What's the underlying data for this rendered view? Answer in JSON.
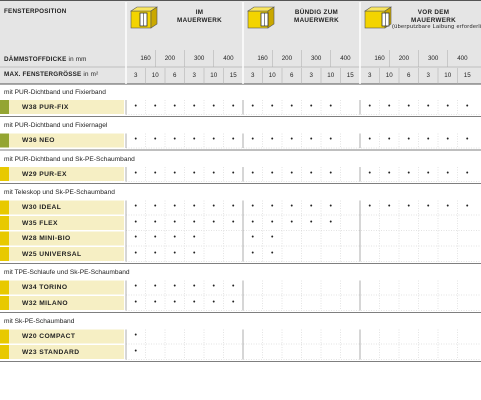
{
  "header": {
    "position_label": "FENSTERPOSITION",
    "insulation_label": "DÄMMSTOFFDICKE",
    "insulation_unit": "in mm",
    "window_size_label": "MAX. FENSTERGRÖSSE",
    "window_size_unit": "in m²"
  },
  "columns": [
    {
      "title_line1": "IM",
      "title_line2": "MAUERWERK",
      "subtitle": "",
      "icon": "window-in-wall-icon"
    },
    {
      "title_line1": "BÜNDIG ZUM",
      "title_line2": "MAUERWERK",
      "subtitle": "",
      "icon": "window-flush-wall-icon"
    },
    {
      "title_line1": "VOR DEM",
      "title_line2": "MAUERWERK",
      "subtitle": "(überputzbare Laibung erforderlich)",
      "icon": "window-front-wall-icon"
    }
  ],
  "thickness_values": [
    "160",
    "200",
    "300",
    "400"
  ],
  "size_values": [
    "3",
    "10",
    "6",
    "3",
    "10",
    "15"
  ],
  "groups": [
    {
      "title": "mit PUR-Dichtband und Fixierband",
      "color": "#94a532",
      "products": [
        {
          "name": "W38 PUR-FIX",
          "dots": [
            [
              1,
              1,
              1,
              1,
              1,
              1
            ],
            [
              1,
              1,
              1,
              1,
              1,
              0
            ],
            [
              1,
              1,
              1,
              1,
              1,
              1
            ]
          ]
        }
      ]
    },
    {
      "title": "mit PUR-Dichtband und Fixiernagel",
      "color": "#94a532",
      "products": [
        {
          "name": "W36 NEO",
          "dots": [
            [
              1,
              1,
              1,
              1,
              1,
              1
            ],
            [
              1,
              1,
              1,
              1,
              1,
              0
            ],
            [
              1,
              1,
              1,
              1,
              1,
              1
            ]
          ]
        }
      ]
    },
    {
      "title": "mit PUR-Dichtband und Sk-PE-Schaumband",
      "color": "#e8c900",
      "products": [
        {
          "name": "W29 PUR-EX",
          "dots": [
            [
              1,
              1,
              1,
              1,
              1,
              1
            ],
            [
              1,
              1,
              1,
              1,
              1,
              0
            ],
            [
              1,
              1,
              1,
              1,
              1,
              1
            ]
          ]
        }
      ]
    },
    {
      "title": "mit Teleskop und Sk-PE-Schaumband",
      "color": "#e8c900",
      "products": [
        {
          "name": "W30 IDEAL",
          "dots": [
            [
              1,
              1,
              1,
              1,
              1,
              1
            ],
            [
              1,
              1,
              1,
              1,
              1,
              0
            ],
            [
              1,
              1,
              1,
              1,
              1,
              1
            ]
          ]
        },
        {
          "name": "W35 FLEX",
          "dots": [
            [
              1,
              1,
              1,
              1,
              1,
              1
            ],
            [
              1,
              1,
              1,
              1,
              1,
              0
            ],
            [
              0,
              0,
              0,
              0,
              0,
              0
            ]
          ]
        },
        {
          "name": "W28 MINI-BIO",
          "dots": [
            [
              1,
              1,
              1,
              1,
              0,
              0
            ],
            [
              1,
              1,
              0,
              0,
              0,
              0
            ],
            [
              0,
              0,
              0,
              0,
              0,
              0
            ]
          ]
        },
        {
          "name": "W25 UNIVERSAL",
          "dots": [
            [
              1,
              1,
              1,
              1,
              0,
              0
            ],
            [
              1,
              1,
              0,
              0,
              0,
              0
            ],
            [
              0,
              0,
              0,
              0,
              0,
              0
            ]
          ]
        }
      ]
    },
    {
      "title": "mit TPE-Schlaufe und Sk-PE-Schaumband",
      "color": "#e8c900",
      "products": [
        {
          "name": "W34 TORINO",
          "dots": [
            [
              1,
              1,
              1,
              1,
              1,
              1
            ],
            [
              0,
              0,
              0,
              0,
              0,
              0
            ],
            [
              0,
              0,
              0,
              0,
              0,
              0
            ]
          ]
        },
        {
          "name": "W32 MILANO",
          "dots": [
            [
              1,
              1,
              1,
              1,
              1,
              1
            ],
            [
              0,
              0,
              0,
              0,
              0,
              0
            ],
            [
              0,
              0,
              0,
              0,
              0,
              0
            ]
          ]
        }
      ]
    },
    {
      "title": "mit Sk-PE-Schaumband",
      "color": "#e8c900",
      "products": [
        {
          "name": "W20 COMPACT",
          "dots": [
            [
              1,
              0,
              0,
              0,
              0,
              0
            ],
            [
              0,
              0,
              0,
              0,
              0,
              0
            ],
            [
              0,
              0,
              0,
              0,
              0,
              0
            ]
          ]
        },
        {
          "name": "W23 STANDARD",
          "dots": [
            [
              1,
              0,
              0,
              0,
              0,
              0
            ],
            [
              0,
              0,
              0,
              0,
              0,
              0
            ],
            [
              0,
              0,
              0,
              0,
              0,
              0
            ]
          ]
        }
      ]
    }
  ],
  "colors": {
    "header_bg": "#e5e5e5",
    "rule": "#555555",
    "grid": "#c8c8c8",
    "label_bg": "#f6efc4",
    "accent_yellow": "#e8c900",
    "accent_green": "#94a532"
  },
  "dot_glyph": "•"
}
